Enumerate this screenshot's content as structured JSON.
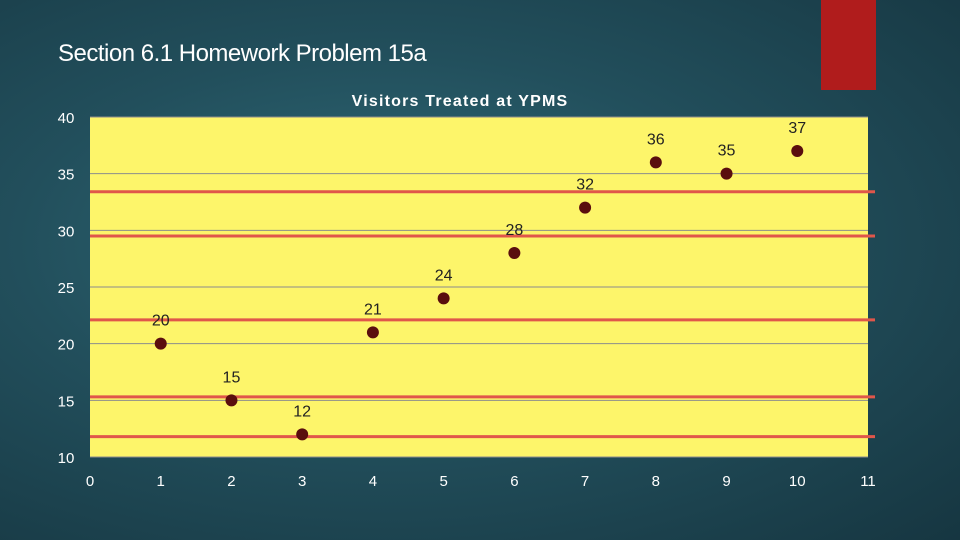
{
  "slide": {
    "title": "Section 6.1 Homework Problem 15a",
    "accent_color": "#b01c1c"
  },
  "chart_data": {
    "type": "scatter",
    "title": "Visitors Treated at YPMS",
    "xlabel": "",
    "ylabel": "",
    "xlim": [
      0,
      11
    ],
    "ylim": [
      10,
      40
    ],
    "xticks": [
      0,
      1,
      2,
      3,
      4,
      5,
      6,
      7,
      8,
      9,
      10,
      11
    ],
    "yticks": [
      10,
      15,
      20,
      25,
      30,
      35,
      40
    ],
    "grid": "horizontal",
    "plot_background": "#fdf56a",
    "marker_color": "#5a0e0e",
    "points": [
      {
        "x": 1,
        "y": 20,
        "label": "20"
      },
      {
        "x": 2,
        "y": 15,
        "label": "15"
      },
      {
        "x": 3,
        "y": 12,
        "label": "12"
      },
      {
        "x": 4,
        "y": 21,
        "label": "21"
      },
      {
        "x": 5,
        "y": 24,
        "label": "24"
      },
      {
        "x": 6,
        "y": 28,
        "label": "28"
      },
      {
        "x": 7,
        "y": 32,
        "label": "32"
      },
      {
        "x": 8,
        "y": 36,
        "label": "36"
      },
      {
        "x": 9,
        "y": 35,
        "label": "35"
      },
      {
        "x": 10,
        "y": 37,
        "label": "37"
      }
    ],
    "reference_lines": [
      {
        "y": 33.4
      },
      {
        "y": 29.5
      },
      {
        "y": 22.1
      },
      {
        "y": 15.3
      },
      {
        "y": 11.8
      }
    ],
    "reference_line_color": "#e0564a"
  }
}
